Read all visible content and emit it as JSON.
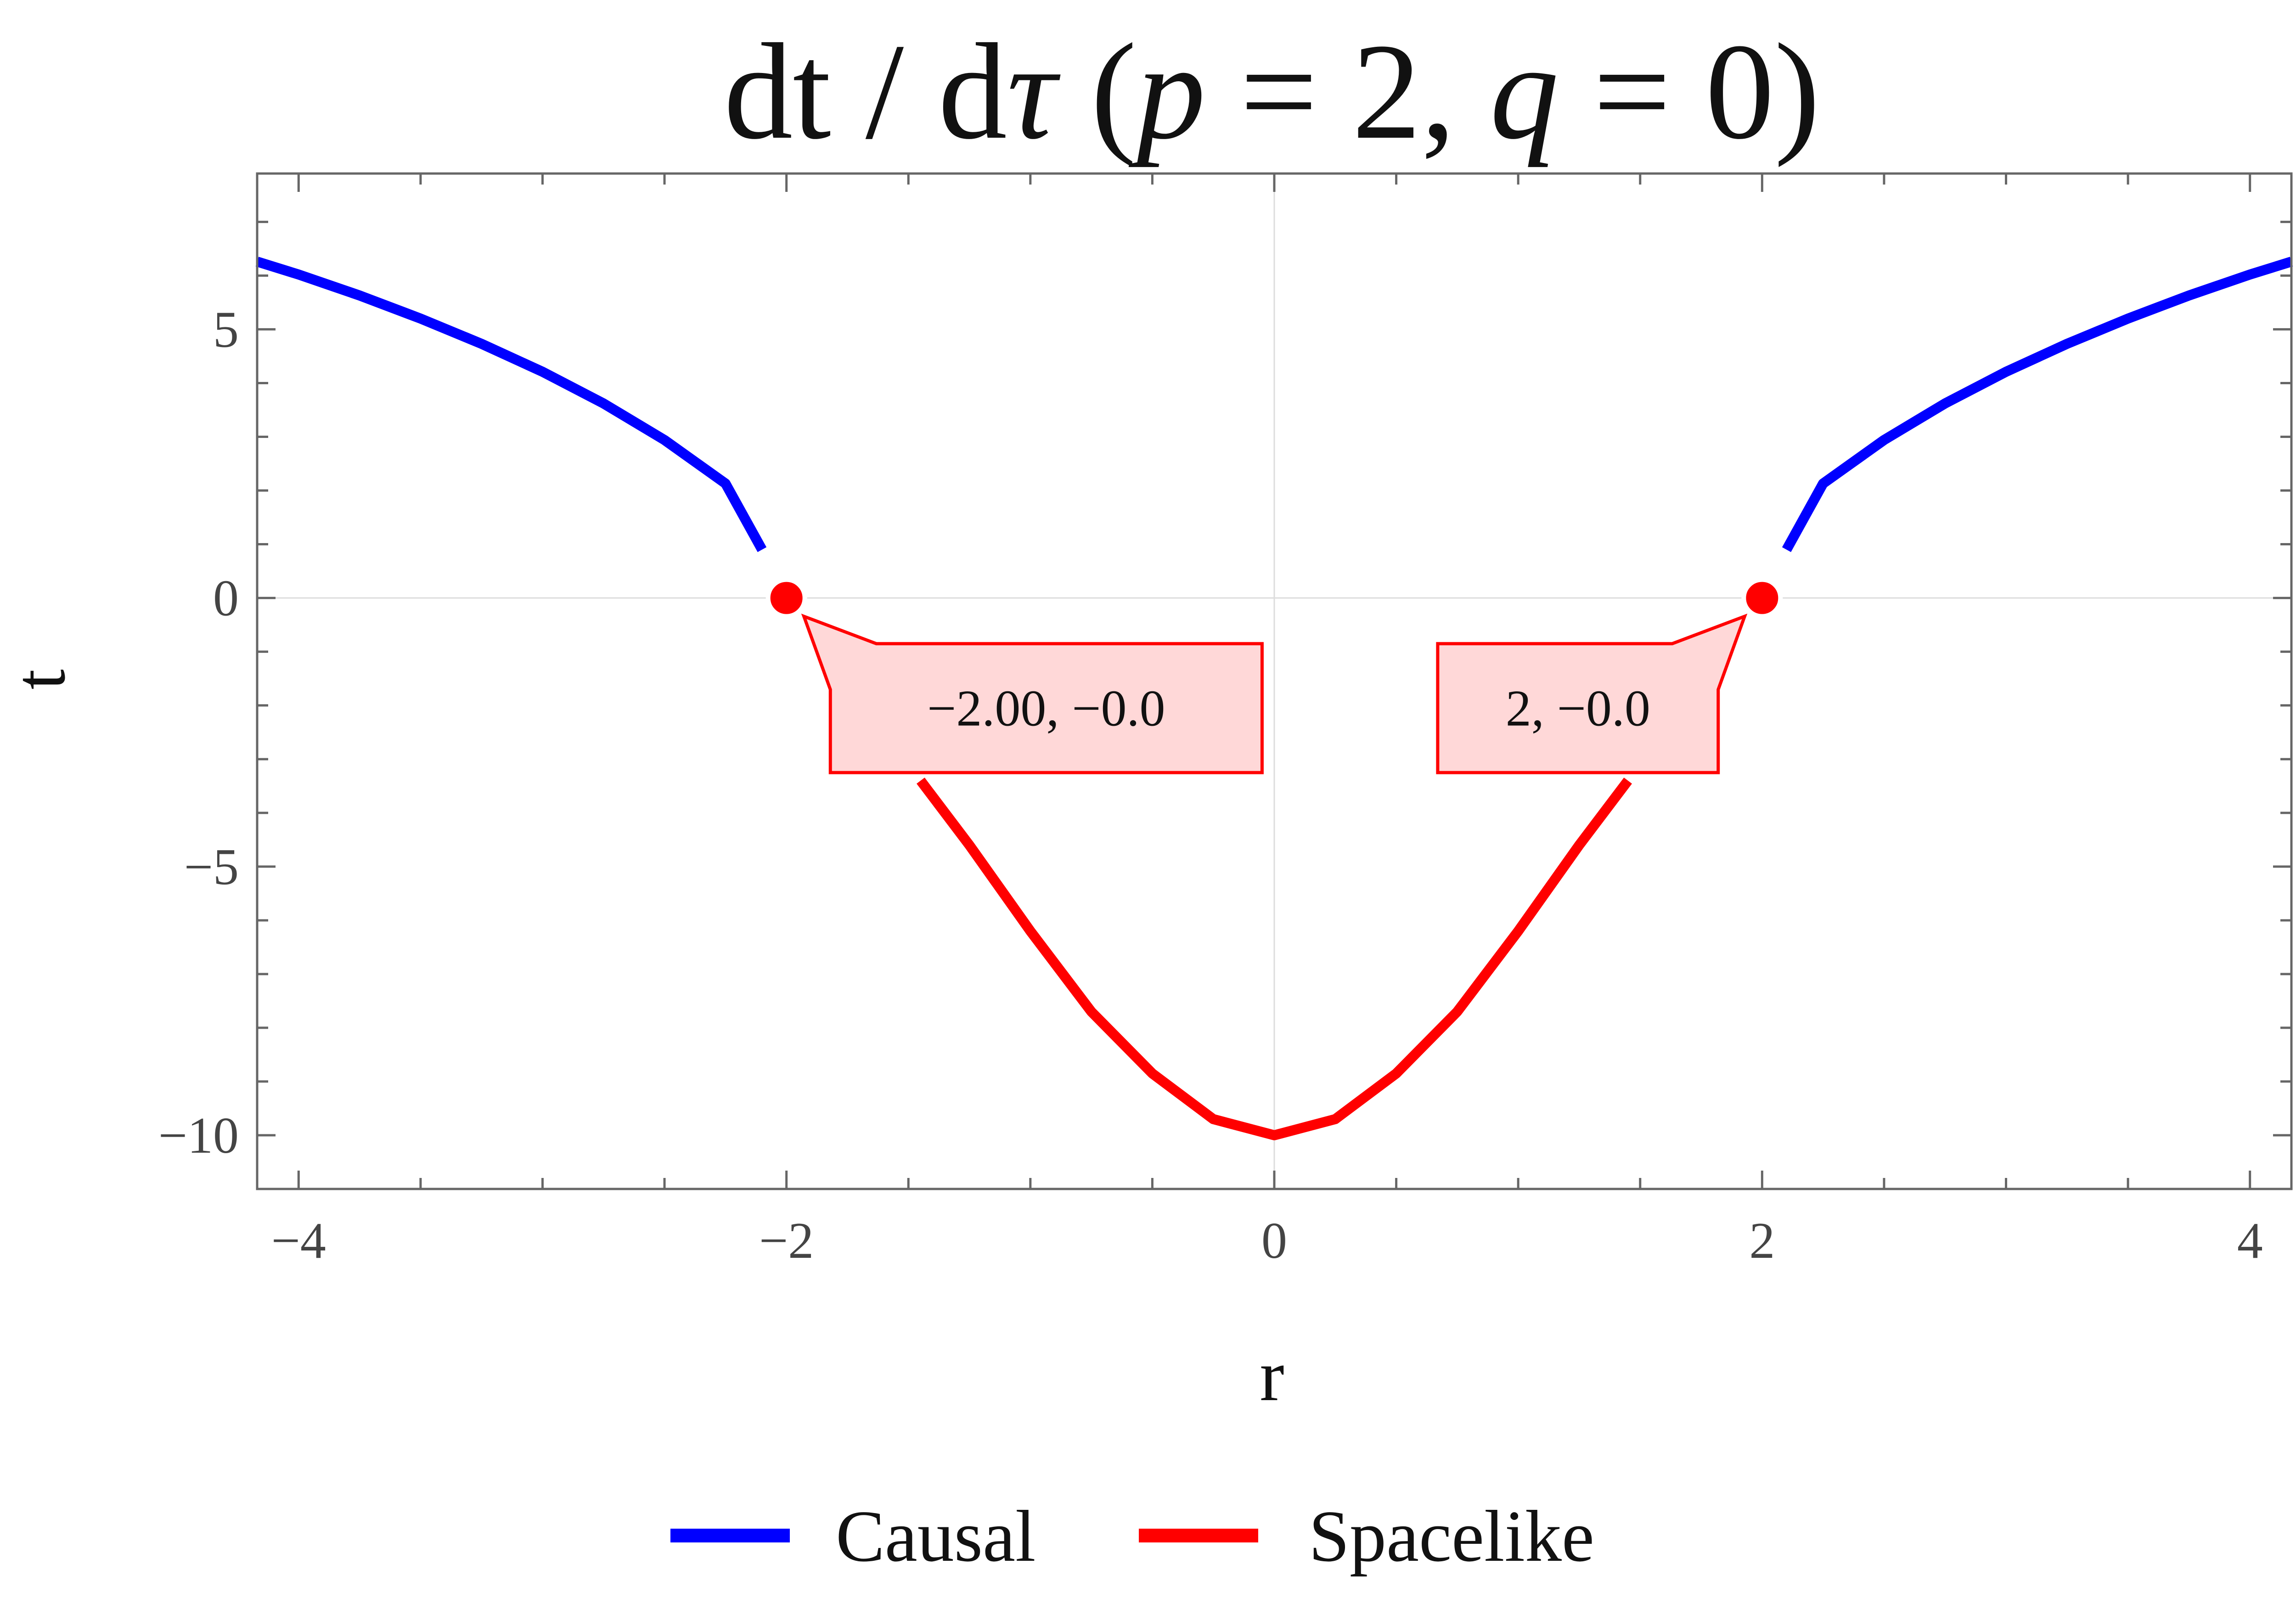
{
  "chart_data": {
    "type": "line",
    "title_parts": {
      "prefix": "dt / d",
      "tau": "τ",
      "open": " (",
      "p_var": "p",
      "p_eq": " = 2, ",
      "q_var": "q",
      "q_eq": " = 0)"
    },
    "xlabel": "r",
    "ylabel": "t",
    "xlim": [
      -4.17,
      4.17
    ],
    "ylim": [
      -11.0,
      7.9
    ],
    "x_ticks": [
      -4,
      -2,
      0,
      2,
      4
    ],
    "x_tick_labels": [
      "−4",
      "−2",
      "0",
      "2",
      "4"
    ],
    "y_ticks": [
      5,
      0,
      -5,
      -10
    ],
    "y_tick_labels": [
      "5",
      "0",
      "−5",
      "−10"
    ],
    "grid": "lines at x=0 and t=0 only",
    "series": [
      {
        "name": "Causal",
        "color": "#0000ff",
        "segments": [
          [
            [
              -4.17,
              6.26
            ],
            [
              -4.0,
              6.02
            ],
            [
              -3.75,
              5.63
            ],
            [
              -3.5,
              5.2
            ],
            [
              -3.25,
              4.73
            ],
            [
              -3.0,
              4.21
            ],
            [
              -2.75,
              3.62
            ],
            [
              -2.5,
              2.94
            ],
            [
              -2.25,
              2.13
            ],
            [
              -2.1,
              0.9
            ]
          ],
          [
            [
              2.1,
              0.9
            ],
            [
              2.25,
              2.13
            ],
            [
              2.5,
              2.94
            ],
            [
              2.75,
              3.62
            ],
            [
              3.0,
              4.21
            ],
            [
              3.25,
              4.73
            ],
            [
              3.5,
              5.2
            ],
            [
              3.75,
              5.63
            ],
            [
              4.0,
              6.02
            ],
            [
              4.17,
              6.26
            ]
          ]
        ]
      },
      {
        "name": "Spacelike",
        "color": "#ff0000",
        "segments": [
          [
            [
              -1.45,
              -3.4
            ],
            [
              -1.25,
              -4.6
            ],
            [
              -1.0,
              -6.2
            ],
            [
              -0.75,
              -7.7
            ],
            [
              -0.5,
              -8.85
            ],
            [
              -0.25,
              -9.7
            ],
            [
              0.0,
              -10.0
            ],
            [
              0.25,
              -9.7
            ],
            [
              0.5,
              -8.85
            ],
            [
              0.75,
              -7.7
            ],
            [
              1.0,
              -6.2
            ],
            [
              1.25,
              -4.6
            ],
            [
              1.45,
              -3.4
            ]
          ]
        ]
      }
    ],
    "points": [
      {
        "x": -2.0,
        "y": 0.0,
        "label": "−2.00, −0.0",
        "box_x": [
          -1.82,
          -0.05
        ],
        "box_y": [
          -0.85,
          -3.25
        ]
      },
      {
        "x": 2.0,
        "y": 0.0,
        "label": "2, −0.0",
        "box_x": [
          0.67,
          1.82
        ],
        "box_y": [
          -0.85,
          -3.25
        ]
      }
    ],
    "legend": {
      "placement": "bottom-center",
      "entries": [
        {
          "name": "Causal",
          "color": "#0000ff"
        },
        {
          "name": "Spacelike",
          "color": "#ff0000"
        }
      ]
    }
  }
}
